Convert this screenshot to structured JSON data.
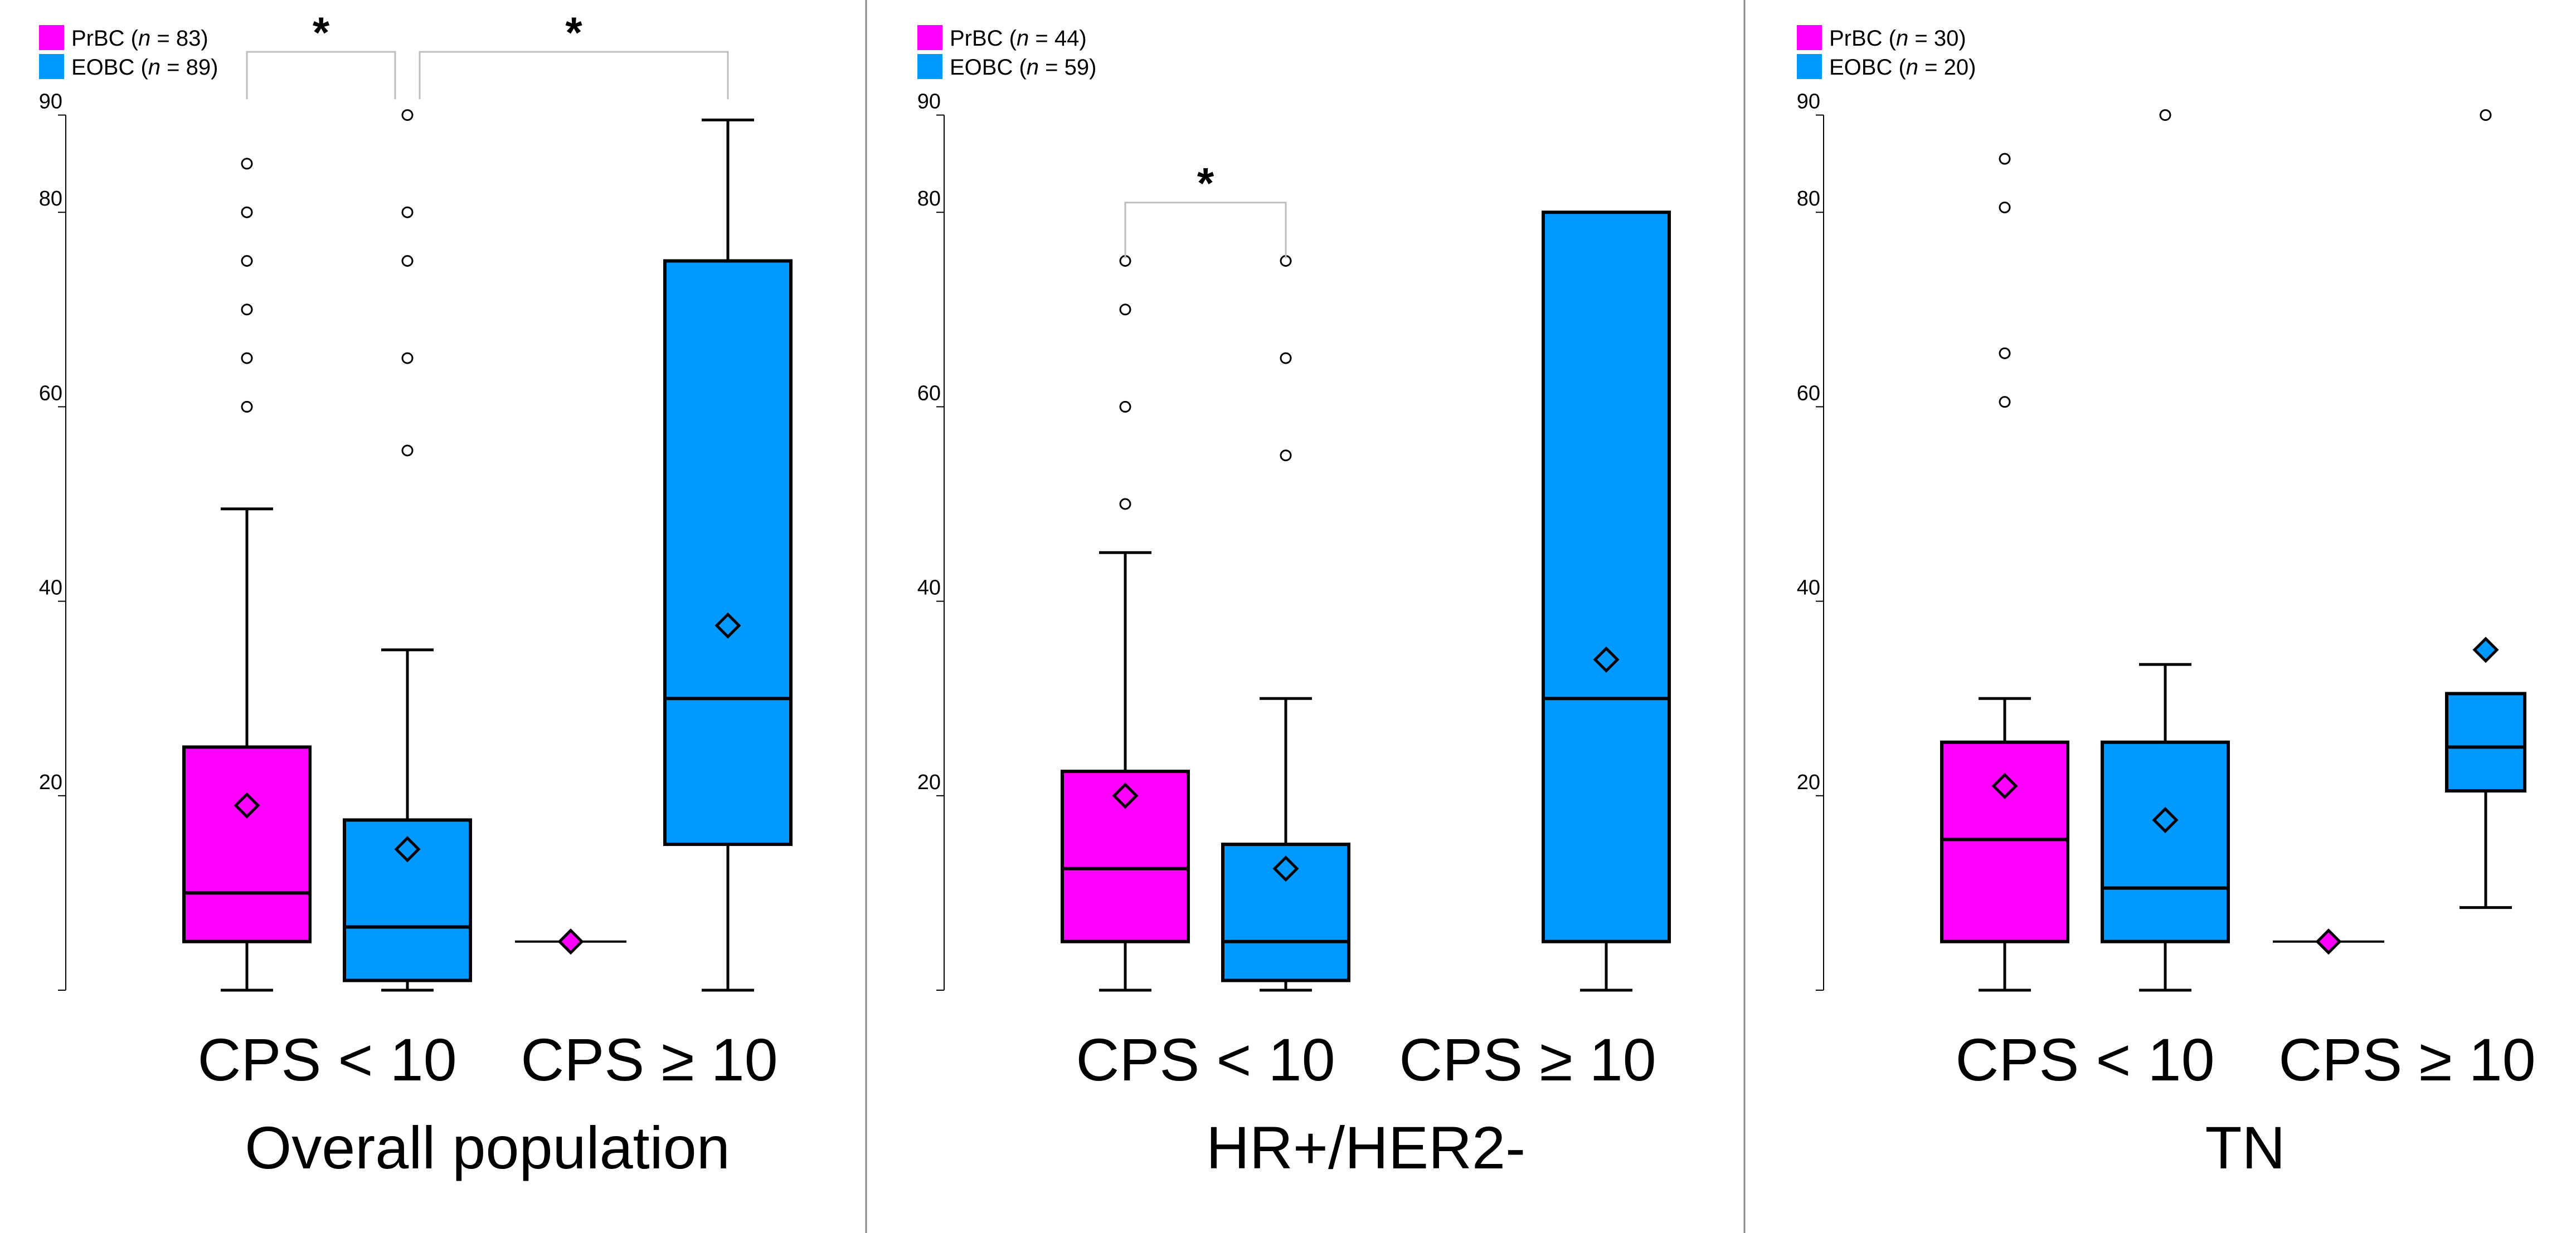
{
  "colors": {
    "PrBC": "#ff00ff",
    "EOBC": "#0099ff",
    "axis": "#000000",
    "bracket": "#bdbdbd",
    "divider": "#888888"
  },
  "chart_data": {
    "type": "boxplot",
    "y_ticks": [
      20,
      40,
      60,
      80,
      90
    ],
    "ylim": [
      0,
      90
    ],
    "categories": [
      "CPS < 10",
      "CPS ≥ 10"
    ],
    "panels": [
      {
        "title": "Overall population",
        "legend": [
          {
            "series": "PrBC",
            "label_prefix": "PrBC (",
            "n_symbol": "n",
            "label_suffix": " = 83)"
          },
          {
            "series": "EOBC",
            "label_prefix": "EOBC (",
            "n_symbol": "n",
            "label_suffix": " = 89)"
          }
        ],
        "boxes": [
          {
            "category": "CPS < 10",
            "series": "PrBC",
            "min": 0,
            "q1": 5,
            "median": 10,
            "q3": 25,
            "max": 49.5,
            "mean": 19,
            "outliers": [
              60,
              65,
              70,
              75,
              80,
              85
            ]
          },
          {
            "category": "CPS < 10",
            "series": "EOBC",
            "min": 0,
            "q1": 1,
            "median": 6.5,
            "q3": 17.5,
            "max": 35,
            "mean": 14.5,
            "outliers": [
              55.5,
              65,
              75,
              80,
              90
            ]
          },
          {
            "category": "CPS ≥ 10",
            "series": "PrBC",
            "min": 5,
            "q1": 5,
            "median": 5,
            "q3": 5,
            "max": 5,
            "mean": 5,
            "outliers": []
          },
          {
            "category": "CPS ≥ 10",
            "series": "EOBC",
            "min": 0,
            "q1": 15,
            "median": 30,
            "q3": 75,
            "max": 89.5,
            "mean": 37.5,
            "outliers": []
          }
        ],
        "significance": [
          {
            "label": "*",
            "from_box": 0,
            "to_box": 1,
            "level": 96.5
          },
          {
            "label": "*",
            "from_box": 1,
            "to_box": 3,
            "level": 96.5
          }
        ]
      },
      {
        "title": "HR+/HER2-",
        "legend": [
          {
            "series": "PrBC",
            "label_prefix": "PrBC (",
            "n_symbol": "n",
            "label_suffix": " = 44)"
          },
          {
            "series": "EOBC",
            "label_prefix": "EOBC (",
            "n_symbol": "n",
            "label_suffix": " = 59)"
          }
        ],
        "boxes": [
          {
            "category": "CPS < 10",
            "series": "PrBC",
            "min": 0,
            "q1": 5,
            "median": 12.5,
            "q3": 22.5,
            "max": 45,
            "mean": 20,
            "outliers": [
              50,
              60,
              70,
              75
            ]
          },
          {
            "category": "CPS < 10",
            "series": "EOBC",
            "min": 0,
            "q1": 1,
            "median": 5,
            "q3": 15,
            "max": 30,
            "mean": 12.5,
            "outliers": [
              55,
              65,
              75
            ]
          },
          {
            "category": "CPS ≥ 10",
            "series": "EOBC",
            "min": 0,
            "q1": 5,
            "median": 30,
            "q3": 80,
            "max": 80,
            "mean": 34,
            "outliers": []
          }
        ],
        "significance": [
          {
            "label": "*",
            "from_box": 0,
            "to_box": 1,
            "level": 81
          }
        ]
      },
      {
        "title": "TN",
        "legend": [
          {
            "series": "PrBC",
            "label_prefix": "PrBC (",
            "n_symbol": "n",
            "label_suffix": " = 30)"
          },
          {
            "series": "EOBC",
            "label_prefix": "EOBC (",
            "n_symbol": "n",
            "label_suffix": " = 20)"
          }
        ],
        "boxes": [
          {
            "category": "CPS < 10",
            "series": "PrBC",
            "min": 0,
            "q1": 5,
            "median": 15.5,
            "q3": 25.5,
            "max": 30,
            "mean": 21,
            "outliers": [
              60.5,
              65.5,
              80.5,
              85.5
            ]
          },
          {
            "category": "CPS < 10",
            "series": "EOBC",
            "min": 0,
            "q1": 5,
            "median": 10.5,
            "q3": 25.5,
            "max": 33.5,
            "mean": 17.5,
            "outliers": [
              90
            ]
          },
          {
            "category": "CPS ≥ 10",
            "series": "PrBC",
            "min": 5,
            "q1": 5,
            "median": 5,
            "q3": 5,
            "max": 5,
            "mean": 5,
            "outliers": []
          },
          {
            "category": "CPS ≥ 10",
            "series": "EOBC",
            "min": 8.5,
            "q1": 20.5,
            "median": 25,
            "q3": 30.5,
            "max": 30.5,
            "mean": 35,
            "outliers": [
              90
            ]
          }
        ],
        "significance": []
      }
    ]
  }
}
